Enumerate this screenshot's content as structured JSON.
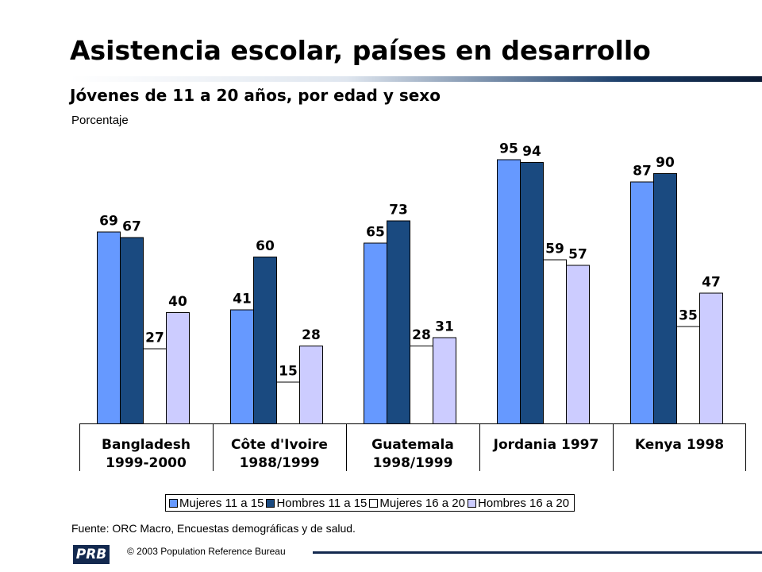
{
  "header": {
    "title": "Asistencia escolar, países en desarrollo",
    "subtitle": "Jóvenes de 11 a 20 años, por edad y sexo",
    "unit": "Porcentaje"
  },
  "chart_data": {
    "type": "bar",
    "title": "Asistencia escolar, países en desarrollo",
    "subtitle": "Jóvenes de 11 a 20 años, por edad y sexo",
    "ylabel": "Porcentaje",
    "xlabel": "",
    "ylim": [
      0,
      100
    ],
    "grid": false,
    "legend_position": "bottom",
    "categories": [
      [
        "Bangladesh",
        "1999-2000"
      ],
      [
        "Côte d'Ivoire",
        "1988/1999"
      ],
      [
        "Guatemala",
        "1998/1999"
      ],
      [
        "Jordania 1997"
      ],
      [
        "Kenya 1998"
      ]
    ],
    "series": [
      {
        "name": "Mujeres 11 a 15",
        "color": "#6699ff",
        "values": [
          69,
          41,
          65,
          95,
          87
        ]
      },
      {
        "name": "Hombres 11 a 15",
        "color": "#1a4a80",
        "values": [
          67,
          60,
          73,
          94,
          90
        ]
      },
      {
        "name": "Mujeres 16 a 20",
        "color": "#ffffff",
        "values": [
          27,
          15,
          28,
          59,
          35
        ]
      },
      {
        "name": "Hombres 16 a 20",
        "color": "#ccccff",
        "values": [
          40,
          28,
          31,
          57,
          47
        ]
      }
    ]
  },
  "footer": {
    "source": "Fuente: ORC Macro, Encuestas demográficas y de salud.",
    "logo_text": "PRB",
    "copyright": "© 2003  Population Reference Bureau"
  }
}
